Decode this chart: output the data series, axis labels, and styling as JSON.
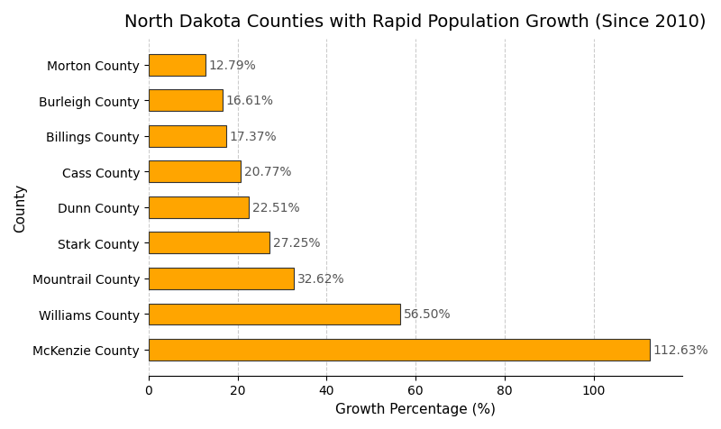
{
  "title": "North Dakota Counties with Rapid Population Growth (Since 2010)",
  "xlabel": "Growth Percentage (%)",
  "ylabel": "County",
  "categories": [
    "McKenzie County",
    "Williams County",
    "Mountrail County",
    "Stark County",
    "Dunn County",
    "Cass County",
    "Billings County",
    "Burleigh County",
    "Morton County"
  ],
  "values": [
    112.63,
    56.5,
    32.62,
    27.25,
    22.51,
    20.77,
    17.37,
    16.61,
    12.79
  ],
  "bar_color": "#FFA500",
  "bar_edgecolor": "#333333",
  "bar_linewidth": 0.8,
  "background_color": "#ffffff",
  "grid_color": "#cccccc",
  "title_fontsize": 14,
  "label_fontsize": 11,
  "tick_fontsize": 10,
  "annotation_fontsize": 10,
  "annotation_color": "#555555",
  "xlim": [
    0,
    120
  ],
  "xticks": [
    0,
    20,
    40,
    60,
    80,
    100
  ]
}
